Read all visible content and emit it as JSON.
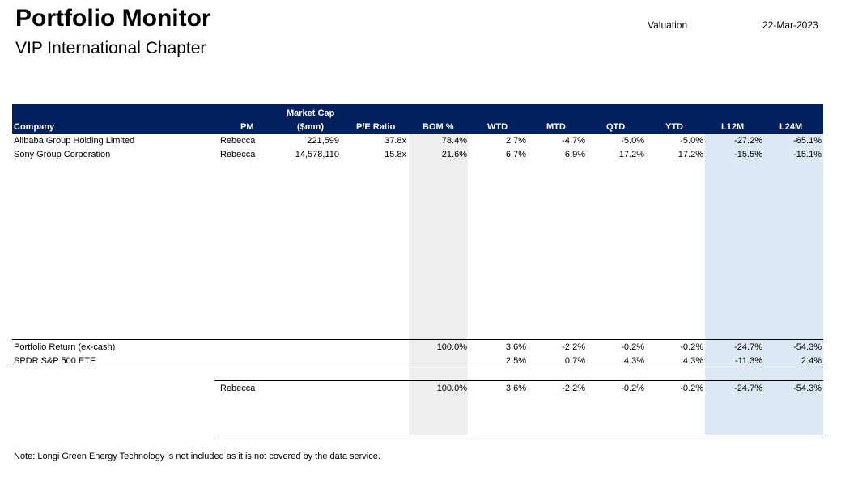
{
  "header": {
    "title": "Portfolio Monitor",
    "subtitle": "VIP International Chapter",
    "valuation_label": "Valuation",
    "date": "22-Mar-2023"
  },
  "table": {
    "columns": {
      "company": "Company",
      "pm": "PM",
      "market_cap_line1": "Market Cap",
      "market_cap_line2": "($mm)",
      "pe_ratio": "P/E Ratio",
      "bom": "BOM %",
      "wtd": "WTD",
      "mtd": "MTD",
      "qtd": "QTD",
      "ytd": "YTD",
      "l12m": "L12M",
      "l24m": "L24M"
    },
    "rows": [
      {
        "company": "Alibaba Group Holding Limited",
        "pm": "Rebecca",
        "market_cap": "221,599",
        "pe": "37.8x",
        "bom": "78.4%",
        "wtd": "2.7%",
        "mtd": "-4.7%",
        "qtd": "-5.0%",
        "ytd": "-5.0%",
        "l12m": "-27.2%",
        "l24m": "-65.1%"
      },
      {
        "company": "Sony Group Corporation",
        "pm": "Rebecca",
        "market_cap": "14,578,110",
        "pe": "15.8x",
        "bom": "21.6%",
        "wtd": "6.7%",
        "mtd": "6.9%",
        "qtd": "17.2%",
        "ytd": "17.2%",
        "l12m": "-15.5%",
        "l24m": "-15.1%"
      }
    ],
    "portfolio_return": {
      "label": "Portfolio Return (ex-cash)",
      "bom": "100.0%",
      "wtd": "3.6%",
      "mtd": "-2.2%",
      "qtd": "-0.2%",
      "ytd": "-0.2%",
      "l12m": "-24.7%",
      "l24m": "-54.3%"
    },
    "benchmark": {
      "label": "SPDR S&P 500 ETF",
      "wtd": "2.5%",
      "mtd": "0.7%",
      "qtd": "4.3%",
      "ytd": "4.3%",
      "l12m": "-11.3%",
      "l24m": "2.4%"
    },
    "pm_summary": {
      "pm": "Rebecca",
      "bom": "100.0%",
      "wtd": "3.6%",
      "mtd": "-2.2%",
      "qtd": "-0.2%",
      "ytd": "-0.2%",
      "l12m": "-24.7%",
      "l24m": "-54.3%"
    }
  },
  "note": "Note: Longi Green Energy Technology is not included as it is not covered by the data service.",
  "colors": {
    "header_bg": "#002060",
    "bom_shade": "#efefef",
    "trailing_shade": "#dde9f5"
  }
}
